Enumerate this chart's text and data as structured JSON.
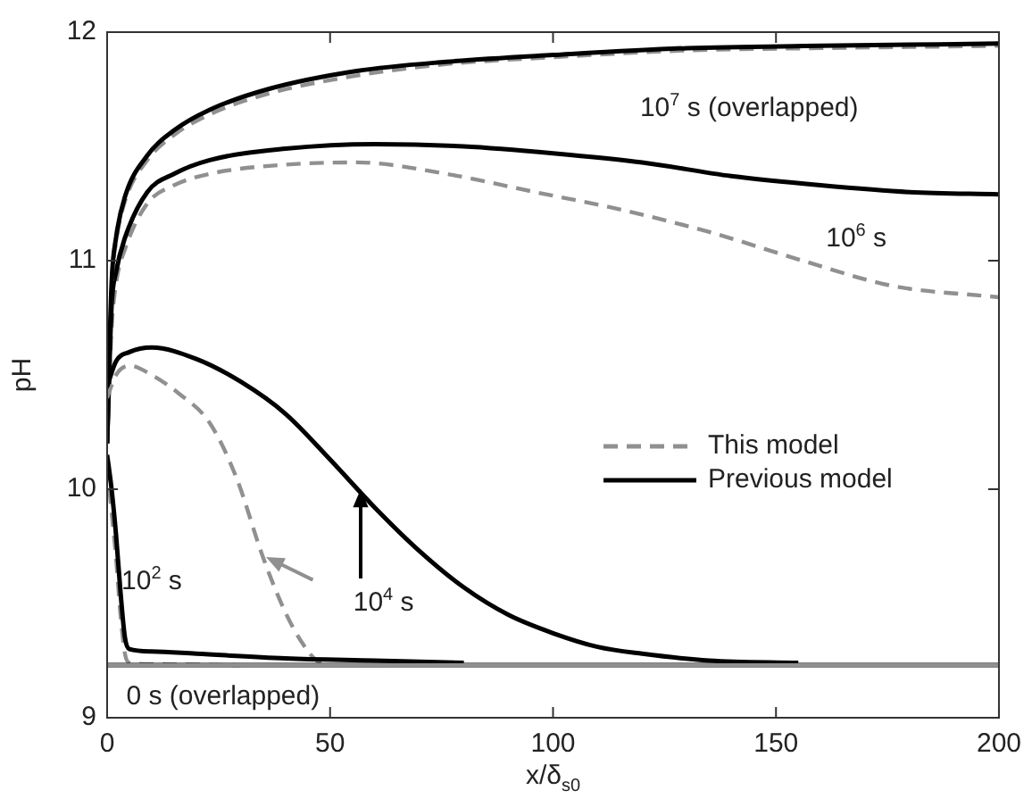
{
  "chart_data": {
    "type": "line",
    "xlabel": "x/δ$_{s0}$",
    "ylabel": "pH",
    "xlim": [
      0,
      200
    ],
    "xticks": [
      0,
      50,
      100,
      150,
      200
    ],
    "ylim": [
      9,
      12
    ],
    "yticks": [
      9,
      10,
      11,
      12
    ],
    "grid": false,
    "legend": "center right",
    "marker": "none",
    "series": [
      {
        "name": "This model",
        "color": "#909090",
        "line_style": "dashed",
        "x": [
          0,
          1,
          2,
          4,
          9,
          15,
          23,
          40,
          56,
          76,
          96,
          116,
          136,
          156,
          176,
          200
        ],
        "values": [
          10.2,
          10.7,
          10.9,
          11.05,
          11.25,
          11.33,
          11.38,
          11.42,
          11.43,
          11.38,
          11.3,
          11.22,
          11.12,
          11.0,
          10.89,
          10.84
        ]
      },
      {
        "name": "Previous model",
        "color": "#000000",
        "line_style": "solid",
        "x": [
          0,
          1,
          2,
          4,
          9,
          15,
          23,
          40,
          60,
          80,
          100,
          120,
          140,
          160,
          180,
          200
        ],
        "values": [
          10.2,
          10.8,
          10.95,
          11.1,
          11.3,
          11.38,
          11.44,
          11.49,
          11.51,
          11.5,
          11.47,
          11.43,
          11.37,
          11.33,
          11.3,
          11.29
        ]
      },
      {
        "color": "#909090",
        "line_style": "dashed",
        "x": [
          0,
          1,
          2,
          4,
          9,
          15,
          23,
          36,
          56,
          76,
          100,
          130,
          160,
          200
        ],
        "values": [
          10.2,
          10.88,
          11.08,
          11.26,
          11.44,
          11.55,
          11.64,
          11.73,
          11.81,
          11.86,
          11.89,
          11.92,
          11.93,
          11.94
        ]
      },
      {
        "color": "#000000",
        "line_style": "solid",
        "x": [
          0,
          1,
          2,
          4,
          9,
          15,
          23,
          36,
          56,
          76,
          100,
          130,
          160,
          200
        ],
        "values": [
          10.2,
          10.9,
          11.1,
          11.28,
          11.46,
          11.57,
          11.66,
          11.75,
          11.83,
          11.87,
          11.9,
          11.93,
          11.94,
          11.95
        ]
      },
      {
        "color": "#909090",
        "line_style": "dashed",
        "x": [
          0,
          2,
          5,
          10,
          16,
          23,
          29,
          35,
          40,
          44,
          47,
          50
        ],
        "values": [
          10.4,
          10.5,
          10.54,
          10.5,
          10.42,
          10.29,
          10.05,
          9.7,
          9.46,
          9.32,
          9.25,
          9.23
        ]
      },
      {
        "color": "#000000",
        "line_style": "solid",
        "x": [
          0,
          2,
          5,
          10,
          20,
          30,
          40,
          50,
          60,
          70,
          80,
          90,
          100,
          110,
          120,
          135,
          155
        ],
        "values": [
          10.45,
          10.56,
          10.6,
          10.62,
          10.57,
          10.47,
          10.33,
          10.13,
          9.92,
          9.73,
          9.57,
          9.45,
          9.37,
          9.31,
          9.28,
          9.25,
          9.24
        ]
      },
      {
        "color": "#909090",
        "line_style": "dashed",
        "x": [
          0,
          1,
          2,
          3,
          4,
          5,
          10,
          30
        ],
        "values": [
          10.1,
          9.9,
          9.7,
          9.45,
          9.28,
          9.24,
          9.235,
          9.23
        ]
      },
      {
        "color": "#000000",
        "line_style": "solid",
        "x": [
          0,
          1,
          2,
          3,
          4,
          5,
          10,
          20,
          40,
          60,
          80
        ],
        "values": [
          10.15,
          10.0,
          9.8,
          9.55,
          9.35,
          9.3,
          9.29,
          9.28,
          9.26,
          9.25,
          9.24
        ]
      },
      {
        "color": "#000000",
        "line_style": "solid",
        "x": [
          0,
          200
        ],
        "values": [
          9.23,
          9.23
        ]
      },
      {
        "color": "#909090",
        "line_style": "solid",
        "x": [
          0,
          200
        ],
        "values": [
          9.23,
          9.23
        ]
      }
    ],
    "annotations": [
      "10$^{7}$ s (overlapped)",
      "10$^{6}$ s",
      "10$^{2}$ s",
      {
        "text": "10$^{4}$ s",
        "x": 57,
        "y": 10
      },
      "0 s (overlapped)"
    ]
  }
}
